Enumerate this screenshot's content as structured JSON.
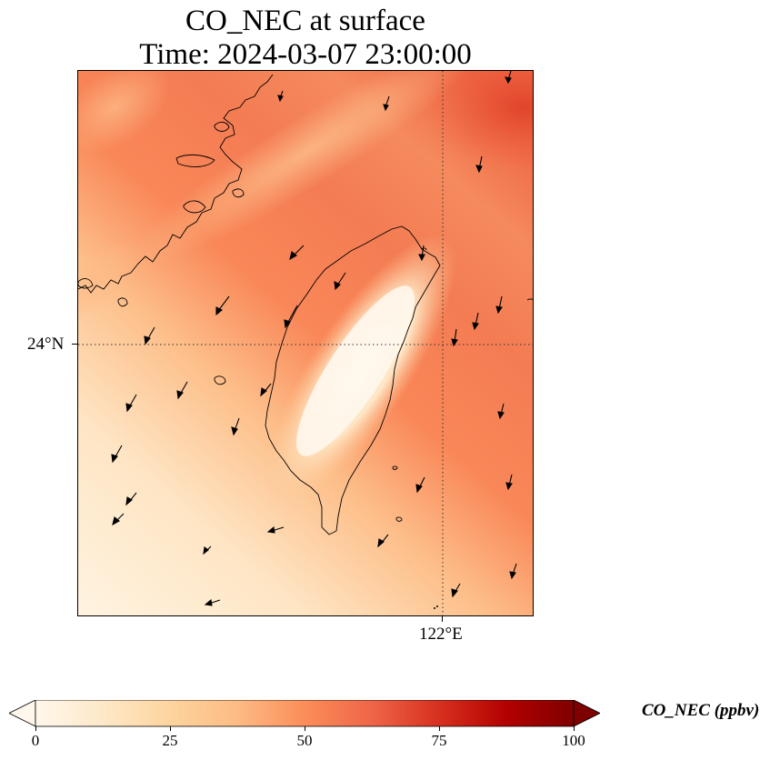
{
  "title": {
    "line1": "CO_NEC at surface",
    "line2": "Time: 2024-03-07 23:00:00"
  },
  "axes": {
    "lat_label": "24°N",
    "lon_label": "122°E",
    "gridlines": "dotted"
  },
  "colorbar": {
    "label": "CO_NEC (ppbv)",
    "ticks": [
      "0",
      "25",
      "50",
      "75",
      "100"
    ],
    "min": 0,
    "max": 100,
    "extend": "both",
    "colormap": [
      "#fff7ec",
      "#fee8c8",
      "#fdd49e",
      "#fdbb84",
      "#fc8d59",
      "#ef6548",
      "#d7301f",
      "#b30000",
      "#7f0000"
    ]
  },
  "map": {
    "field": "CO_NEC",
    "overlay": "wind-vectors",
    "coastlines": true
  }
}
